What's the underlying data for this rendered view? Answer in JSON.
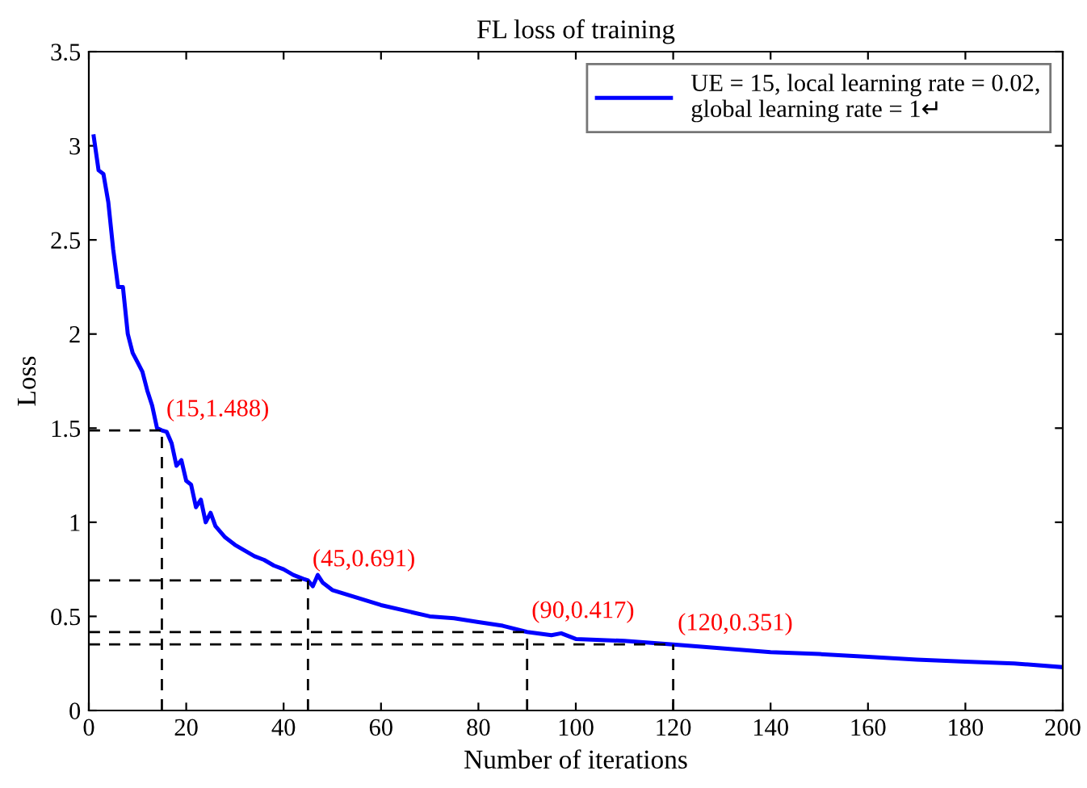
{
  "chart_data": {
    "type": "line",
    "title": "FL loss of training",
    "xlabel": "Number of iterations",
    "ylabel": "Loss",
    "series": [
      {
        "name": "UE = 15, local learning rate = 0.02,\nglobal learning rate = 1↵",
        "color": "#0000ff",
        "x": [
          1,
          2,
          3,
          4,
          5,
          6,
          7,
          8,
          9,
          10,
          11,
          12,
          13,
          14,
          15,
          16,
          17,
          18,
          19,
          20,
          21,
          22,
          23,
          24,
          25,
          26,
          28,
          30,
          32,
          34,
          36,
          38,
          40,
          42,
          44,
          45,
          46,
          47,
          48,
          50,
          55,
          60,
          65,
          70,
          75,
          80,
          85,
          90,
          95,
          97,
          100,
          110,
          120,
          130,
          140,
          150,
          160,
          170,
          180,
          190,
          200
        ],
        "values": [
          3.05,
          2.87,
          2.85,
          2.7,
          2.45,
          2.25,
          2.25,
          2.0,
          1.9,
          1.85,
          1.8,
          1.7,
          1.62,
          1.5,
          1.488,
          1.48,
          1.42,
          1.3,
          1.33,
          1.22,
          1.2,
          1.08,
          1.12,
          1.0,
          1.05,
          0.98,
          0.92,
          0.88,
          0.85,
          0.82,
          0.8,
          0.77,
          0.75,
          0.72,
          0.7,
          0.691,
          0.66,
          0.72,
          0.68,
          0.64,
          0.6,
          0.56,
          0.53,
          0.5,
          0.49,
          0.47,
          0.45,
          0.417,
          0.4,
          0.41,
          0.38,
          0.37,
          0.351,
          0.33,
          0.31,
          0.3,
          0.285,
          0.27,
          0.26,
          0.25,
          0.23
        ]
      }
    ],
    "annotations": [
      {
        "text": "(15,1.488)",
        "x": 15,
        "y": 1.488
      },
      {
        "text": "(45,0.691)",
        "x": 45,
        "y": 0.691
      },
      {
        "text": "(90,0.417)",
        "x": 90,
        "y": 0.417
      },
      {
        "text": "(120,0.351)",
        "x": 120,
        "y": 0.351
      }
    ],
    "xlim": [
      0,
      200
    ],
    "xticks": [
      0,
      20,
      40,
      60,
      80,
      100,
      120,
      140,
      160,
      180,
      200
    ],
    "ylim": [
      0,
      3.5
    ],
    "yticks": [
      0,
      0.5,
      1,
      1.5,
      2,
      2.5,
      3,
      3.5
    ],
    "grid": false,
    "legend": "top right",
    "marker": "none",
    "line_style": "solid"
  }
}
